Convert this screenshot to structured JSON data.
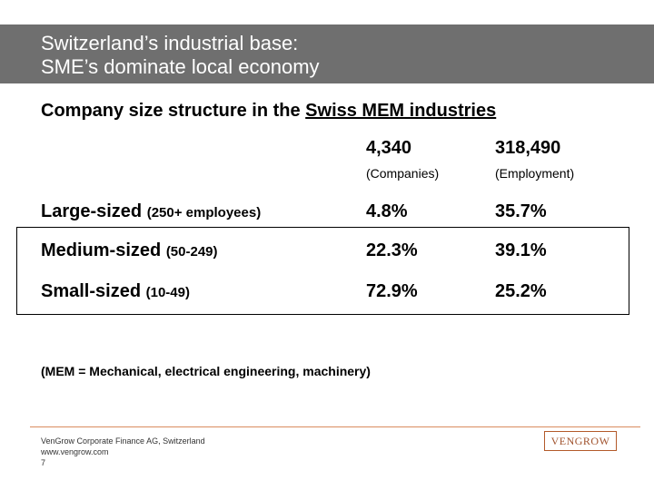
{
  "header": {
    "title_line1": "Switzerland’s industrial base:",
    "title_line2": "SME’s dominate local economy"
  },
  "subtitle": {
    "prefix": "Company size structure in the ",
    "emphasis": "Swiss MEM industries"
  },
  "table": {
    "columns": [
      {
        "total": "4,340",
        "unit": "(Companies)"
      },
      {
        "total": "318,490",
        "unit": "(Employment)"
      }
    ],
    "rows": [
      {
        "label": "Large-sized",
        "range": "(250+ employees)",
        "companies": "4.8%",
        "employment": "35.7%"
      },
      {
        "label": "Medium-sized",
        "range": "(50-249)",
        "companies": "22.3%",
        "employment": "39.1%"
      },
      {
        "label": "Small-sized",
        "range": "(10-49)",
        "companies": "72.9%",
        "employment": "25.2%"
      }
    ]
  },
  "note": "(MEM = Mechanical, electrical engineering, machinery)",
  "footer": {
    "company": "VenGrow Corporate Finance AG, Switzerland",
    "website": "www.vengrow.com",
    "page_number": "7",
    "logo_text": "VENGROW"
  },
  "colors": {
    "title_bar": "#6f6f6f",
    "footer_rule": "#d98c5f",
    "logo": "#a0522d"
  }
}
